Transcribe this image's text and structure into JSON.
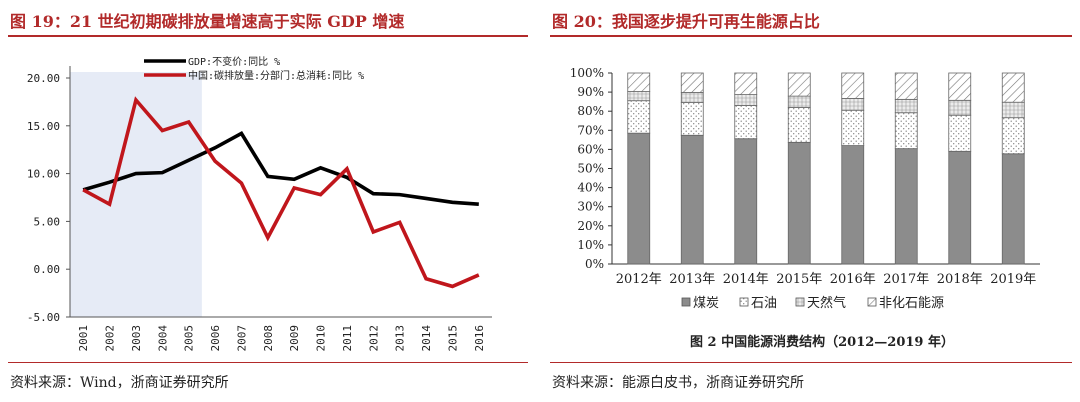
{
  "left_panel": {
    "title": "图 19：21 世纪初期碳排放量增速高于实际 GDP 增速",
    "source": "资料来源：Wind，浙商证券研究所"
  },
  "right_panel": {
    "title": "图 20：我国逐步提升可再生能源占比",
    "source": "资料来源：能源白皮书，浙商证券研究所"
  },
  "chart_data": [
    {
      "type": "line",
      "title": "图 19：21 世纪初期碳排放量增速高于实际 GDP 增速",
      "x": [
        "2001",
        "2002",
        "2003",
        "2004",
        "2005",
        "2006",
        "2007",
        "2008",
        "2009",
        "2010",
        "2011",
        "2012",
        "2013",
        "2014",
        "2015",
        "2016"
      ],
      "ylim": [
        -5,
        20
      ],
      "yticks": [
        "20.00",
        "15.00",
        "10.00",
        "5.00",
        "0.00",
        "-5.00"
      ],
      "shaded_range": [
        "2001",
        "2005"
      ],
      "legend_position": "top",
      "series": [
        {
          "name": "GDP:不变价:同比 %",
          "color": "#000000",
          "values": [
            8.3,
            9.1,
            10.0,
            10.1,
            11.4,
            12.7,
            14.2,
            9.7,
            9.4,
            10.6,
            9.6,
            7.9,
            7.8,
            7.4,
            7.0,
            6.8
          ]
        },
        {
          "name": "中国:碳排放量:分部门:总消耗:同比 %",
          "color": "#c0161c",
          "values": [
            8.3,
            6.8,
            17.7,
            14.5,
            15.4,
            11.3,
            9.0,
            3.3,
            8.5,
            7.8,
            10.5,
            3.9,
            4.9,
            -1.0,
            -1.8,
            -0.6
          ]
        }
      ]
    },
    {
      "type": "bar",
      "stacked": true,
      "title": "图 20：我国逐步提升可再生能源占比",
      "caption": "图 2    中国能源消费结构（2012—2019 年）",
      "categories": [
        "2012年",
        "2013年",
        "2014年",
        "2015年",
        "2016年",
        "2017年",
        "2018年",
        "2019年"
      ],
      "ylim": [
        0,
        100
      ],
      "yticks": [
        "0%",
        "10%",
        "20%",
        "30%",
        "40%",
        "50%",
        "60%",
        "70%",
        "80%",
        "90%",
        "100%"
      ],
      "legend_position": "bottom",
      "series": [
        {
          "name": "煤炭",
          "values": [
            68.5,
            67.4,
            65.6,
            63.7,
            62.0,
            60.4,
            59.0,
            57.7
          ]
        },
        {
          "name": "石油",
          "values": [
            17.0,
            17.1,
            17.4,
            18.3,
            18.5,
            18.8,
            18.9,
            18.9
          ]
        },
        {
          "name": "天然气",
          "values": [
            4.8,
            5.3,
            5.7,
            5.9,
            6.2,
            7.0,
            7.8,
            8.1
          ]
        },
        {
          "name": "非化石能源",
          "values": [
            9.7,
            10.2,
            11.3,
            12.1,
            13.3,
            13.8,
            14.3,
            15.3
          ]
        }
      ]
    }
  ]
}
